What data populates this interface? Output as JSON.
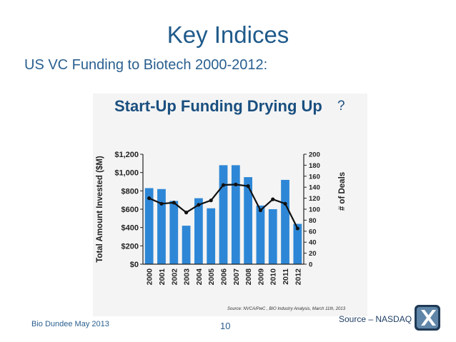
{
  "slide": {
    "title": "Key Indices",
    "subtitle": "US VC Funding to Biotech 2000-2012:",
    "source_right": "Source – NASDAQ",
    "footer_left": "Bio Dundee May 2013",
    "page_number": "10"
  },
  "chart_data": {
    "type": "bar",
    "title": "Start-Up Funding Drying Up",
    "title_suffix": "?",
    "categories": [
      "2000",
      "2001",
      "2002",
      "2003",
      "2004",
      "2005",
      "2006",
      "2007",
      "2008",
      "2009",
      "2010",
      "2011",
      "2012"
    ],
    "series": [
      {
        "name": "Total Amount Invested ($M)",
        "kind": "bar",
        "axis": "left",
        "color": "#2e87d6",
        "values": [
          830,
          820,
          690,
          420,
          720,
          610,
          1080,
          1080,
          950,
          640,
          600,
          920,
          440
        ]
      },
      {
        "name": "# of Deals",
        "kind": "line",
        "axis": "right",
        "color": "#111111",
        "values": [
          120,
          110,
          112,
          94,
          108,
          116,
          144,
          145,
          142,
          98,
          118,
          110,
          65
        ]
      }
    ],
    "ylabel": "Total Amount Invested ($M)",
    "ylabel_right": "# of Deals",
    "ylim": [
      0,
      1200
    ],
    "ylim_right": [
      0,
      200
    ],
    "yticks": [
      "$0",
      "$200",
      "$400",
      "$600",
      "$800",
      "$1,000",
      "$1,200"
    ],
    "yticks_right": [
      "0",
      "20",
      "40",
      "60",
      "80",
      "100",
      "120",
      "140",
      "160",
      "180",
      "200"
    ],
    "source": "Source: NVCA/PwC , BIO Industry Analysis, March 11th, 2013",
    "grid": false,
    "legend": "none"
  }
}
